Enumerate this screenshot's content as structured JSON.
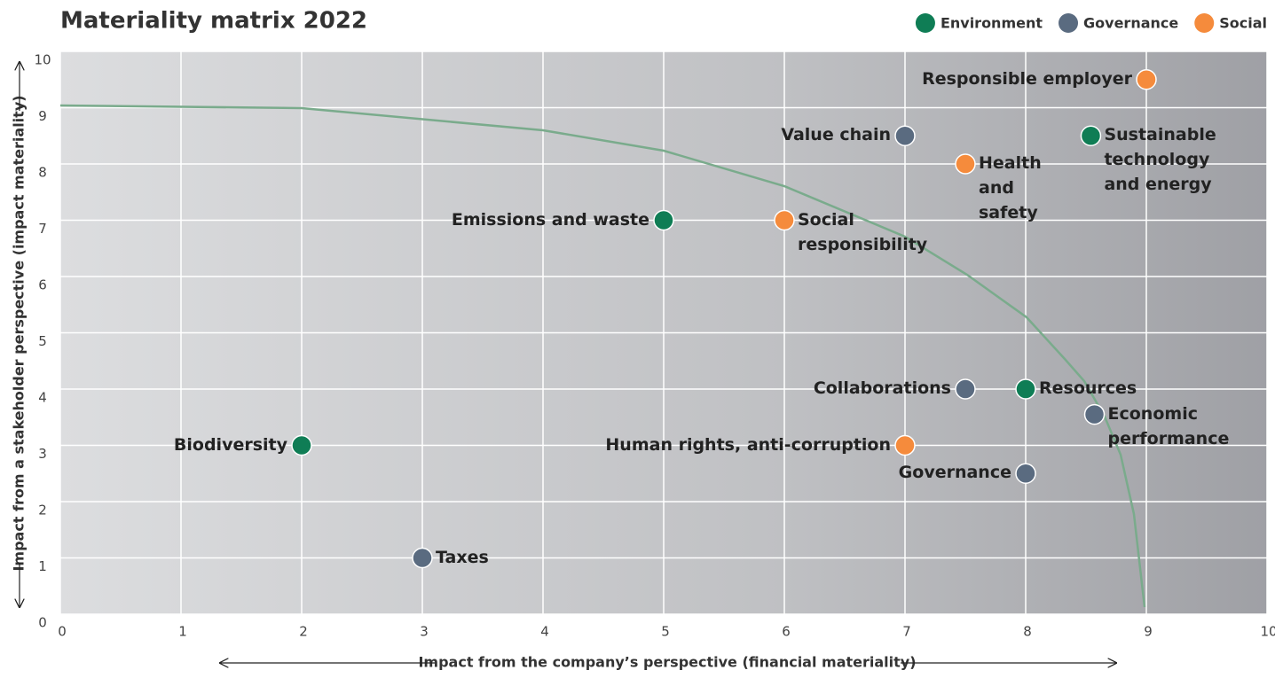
{
  "chart_data": {
    "type": "scatter",
    "title": "Materiality matrix 2022",
    "x_label": "Impact from the company’s perspective (financial materiality)",
    "y_label": "Impact from a stakeholder perspective (impact materiality)",
    "xlim": [
      0,
      10
    ],
    "ylim": [
      0,
      10
    ],
    "xticks": [
      0,
      1,
      2,
      3,
      4,
      5,
      6,
      7,
      8,
      9,
      10
    ],
    "yticks": [
      0,
      1,
      2,
      3,
      4,
      5,
      6,
      7,
      8,
      9,
      10
    ],
    "grid": true,
    "legend": "top-right",
    "series": [
      {
        "name": "Environment",
        "color": "#0f7d55",
        "labels": [
          "Emissions and waste",
          "Biodiversity",
          "Sustainable technology and energy",
          "Resources"
        ],
        "x": [
          5,
          2,
          8.54,
          8
        ],
        "values": [
          7,
          3,
          8.5,
          4
        ]
      },
      {
        "name": "Governance",
        "color": "#5a6b80",
        "labels": [
          "Value chain",
          "Taxes",
          "Collaborations",
          "Economic performance",
          "Governance"
        ],
        "x": [
          7,
          3,
          7.5,
          8.57,
          8
        ],
        "values": [
          8.5,
          1,
          4,
          3.55,
          2.5
        ]
      },
      {
        "name": "Social",
        "color": "#f58b3c",
        "labels": [
          "Responsible employer",
          "Health and safety",
          "Social responsibility",
          "Human rights, anti-corruption"
        ],
        "x": [
          9,
          7.5,
          6,
          7
        ],
        "values": [
          9.5,
          8,
          7,
          3
        ]
      }
    ]
  }
}
